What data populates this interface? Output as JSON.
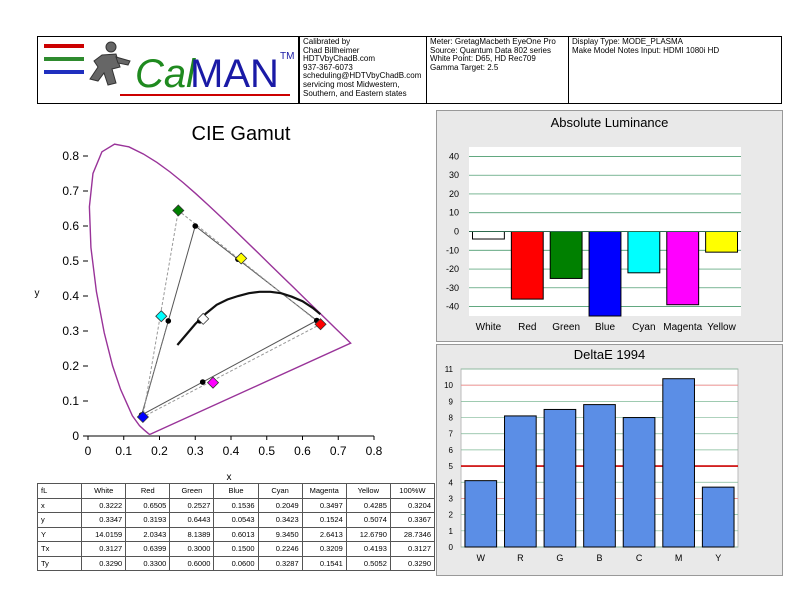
{
  "header": {
    "logo_text_cal": "Cal",
    "logo_text_man": "MAN",
    "logo_tm": "TM",
    "calibrated_lines": [
      "Calibrated by",
      "Chad Billheimer",
      "HDTVbyChadB.com",
      "937-367-6073",
      "scheduling@HDTVbyChadB.com",
      "servicing most Midwestern,",
      "Southern, and Eastern states"
    ],
    "meter_lines": [
      "Meter: GretagMacbeth EyeOne Pro",
      "Source: Quantum Data 802 series",
      "White Point: D65, HD Rec709",
      "Gamma Target: 2.5"
    ],
    "display_lines": [
      "Display Type: MODE_PLASMA",
      "Make Model Notes Input: HDMI 1080i HD"
    ]
  },
  "colors": {
    "white": "#ffffff",
    "red": "#ff0000",
    "green": "#008000",
    "blue": "#0000ff",
    "cyan": "#00ffff",
    "magenta": "#ff00ff",
    "yellow": "#ffff00",
    "bar_blue": "#5b8ee6",
    "locus": "#993399",
    "gridline": "#2e8b57",
    "threshold": "#cc0000"
  },
  "table": {
    "headers": [
      "fL",
      "White",
      "Red",
      "Green",
      "Blue",
      "Cyan",
      "Magenta",
      "Yellow",
      "100%W"
    ],
    "rows": [
      [
        "x",
        "0.3222",
        "0.6505",
        "0.2527",
        "0.1536",
        "0.2049",
        "0.3497",
        "0.4285",
        "0.3204"
      ],
      [
        "y",
        "0.3347",
        "0.3193",
        "0.6443",
        "0.0543",
        "0.3423",
        "0.1524",
        "0.5074",
        "0.3367"
      ],
      [
        "Y",
        "14.0159",
        "2.0343",
        "8.1389",
        "0.6013",
        "9.3450",
        "2.6413",
        "12.6790",
        "28.7346"
      ],
      [
        "Tx",
        "0.3127",
        "0.6399",
        "0.3000",
        "0.1500",
        "0.2246",
        "0.3209",
        "0.4193",
        "0.3127"
      ],
      [
        "Ty",
        "0.3290",
        "0.3300",
        "0.6000",
        "0.0600",
        "0.3287",
        "0.1541",
        "0.5052",
        "0.3290"
      ]
    ]
  },
  "chart_data": [
    {
      "type": "scatter",
      "title": "CIE Gamut",
      "xlabel": "x",
      "ylabel": "y",
      "xlim": [
        0,
        0.8
      ],
      "ylim": [
        0,
        0.8
      ],
      "xticks": [
        "0",
        "0.1",
        "0.2",
        "0.3",
        "0.4",
        "0.5",
        "0.6",
        "0.7",
        "0.8"
      ],
      "yticks": [
        "0",
        "0.1",
        "0.2",
        "0.3",
        "0.4",
        "0.5",
        "0.6",
        "0.7",
        "0.8"
      ],
      "grid": false,
      "measured": [
        {
          "name": "White",
          "x": 0.3222,
          "y": 0.3347,
          "color": "#ffffff"
        },
        {
          "name": "Red",
          "x": 0.6505,
          "y": 0.3193,
          "color": "#ff0000"
        },
        {
          "name": "Green",
          "x": 0.2527,
          "y": 0.6443,
          "color": "#008000"
        },
        {
          "name": "Blue",
          "x": 0.1536,
          "y": 0.0543,
          "color": "#0000ff"
        },
        {
          "name": "Cyan",
          "x": 0.2049,
          "y": 0.3423,
          "color": "#00ffff"
        },
        {
          "name": "Magenta",
          "x": 0.3497,
          "y": 0.1524,
          "color": "#ff00ff"
        },
        {
          "name": "Yellow",
          "x": 0.4285,
          "y": 0.5074,
          "color": "#ffff00"
        }
      ],
      "targets": [
        {
          "name": "White",
          "x": 0.3127,
          "y": 0.329
        },
        {
          "name": "Red",
          "x": 0.6399,
          "y": 0.33
        },
        {
          "name": "Green",
          "x": 0.3,
          "y": 0.6
        },
        {
          "name": "Blue",
          "x": 0.15,
          "y": 0.06
        },
        {
          "name": "Cyan",
          "x": 0.2246,
          "y": 0.3287
        },
        {
          "name": "Magenta",
          "x": 0.3209,
          "y": 0.1541
        },
        {
          "name": "Yellow",
          "x": 0.4193,
          "y": 0.5052
        }
      ],
      "measured_gamut_lines": [
        [
          0.6505,
          0.3193
        ],
        [
          0.2527,
          0.6443
        ],
        [
          0.1536,
          0.0543
        ]
      ],
      "spectral_locus": [
        [
          0.1741,
          0.005
        ],
        [
          0.1736,
          0.0049
        ],
        [
          0.1726,
          0.0048
        ],
        [
          0.1714,
          0.0051
        ],
        [
          0.1689,
          0.0069
        ],
        [
          0.1644,
          0.0109
        ],
        [
          0.1566,
          0.0177
        ],
        [
          0.144,
          0.0297
        ],
        [
          0.1241,
          0.0578
        ],
        [
          0.0913,
          0.1327
        ],
        [
          0.0687,
          0.2007
        ],
        [
          0.0454,
          0.295
        ],
        [
          0.0235,
          0.4127
        ],
        [
          0.0082,
          0.5384
        ],
        [
          0.0039,
          0.6548
        ],
        [
          0.0139,
          0.7502
        ],
        [
          0.0389,
          0.812
        ],
        [
          0.0743,
          0.8338
        ],
        [
          0.1142,
          0.8262
        ],
        [
          0.1547,
          0.8059
        ],
        [
          0.1929,
          0.7816
        ],
        [
          0.2296,
          0.7543
        ],
        [
          0.2658,
          0.7243
        ],
        [
          0.3016,
          0.6923
        ],
        [
          0.3373,
          0.6589
        ],
        [
          0.3731,
          0.6245
        ],
        [
          0.4087,
          0.5896
        ],
        [
          0.4441,
          0.5547
        ],
        [
          0.4788,
          0.5202
        ],
        [
          0.5125,
          0.4866
        ],
        [
          0.5448,
          0.4544
        ],
        [
          0.5752,
          0.4242
        ],
        [
          0.6029,
          0.3965
        ],
        [
          0.627,
          0.3725
        ],
        [
          0.6482,
          0.3514
        ],
        [
          0.6658,
          0.334
        ],
        [
          0.6801,
          0.3197
        ],
        [
          0.6915,
          0.3083
        ],
        [
          0.7006,
          0.2993
        ],
        [
          0.714,
          0.2859
        ],
        [
          0.7347,
          0.2653
        ],
        [
          0.1741,
          0.005
        ]
      ],
      "planckian_locus": [
        [
          0.25,
          0.26
        ],
        [
          0.275,
          0.29
        ],
        [
          0.3,
          0.32
        ],
        [
          0.33,
          0.35
        ],
        [
          0.36,
          0.375
        ],
        [
          0.39,
          0.39
        ],
        [
          0.42,
          0.4
        ],
        [
          0.45,
          0.408
        ],
        [
          0.48,
          0.412
        ],
        [
          0.51,
          0.412
        ],
        [
          0.54,
          0.408
        ],
        [
          0.57,
          0.398
        ],
        [
          0.6,
          0.385
        ],
        [
          0.63,
          0.365
        ],
        [
          0.65,
          0.348
        ]
      ]
    },
    {
      "type": "bar",
      "title": "Absolute Luminance",
      "categories": [
        "White",
        "Red",
        "Green",
        "Blue",
        "Cyan",
        "Magenta",
        "Yellow"
      ],
      "values": [
        -4,
        -36,
        -25,
        -45,
        -22,
        -39,
        -11
      ],
      "colors": [
        "#ffffff",
        "#ff0000",
        "#008000",
        "#0000ff",
        "#00ffff",
        "#ff00ff",
        "#ffff00"
      ],
      "ylim": [
        -45,
        45
      ],
      "yticks": [
        "40",
        "30",
        "20",
        "10",
        "0",
        "-10",
        "-20",
        "-30",
        "-40"
      ],
      "grid": true
    },
    {
      "type": "bar",
      "title": "DeltaE 1994",
      "categories": [
        "W",
        "R",
        "G",
        "B",
        "C",
        "M",
        "Y"
      ],
      "values": [
        4.1,
        8.1,
        8.5,
        8.8,
        8.0,
        10.4,
        3.7
      ],
      "ylim": [
        0,
        11
      ],
      "yticks": [
        "0",
        "1",
        "2",
        "3",
        "4",
        "5",
        "6",
        "7",
        "8",
        "9",
        "10",
        "11"
      ],
      "threshold": 5,
      "grid": true
    }
  ]
}
